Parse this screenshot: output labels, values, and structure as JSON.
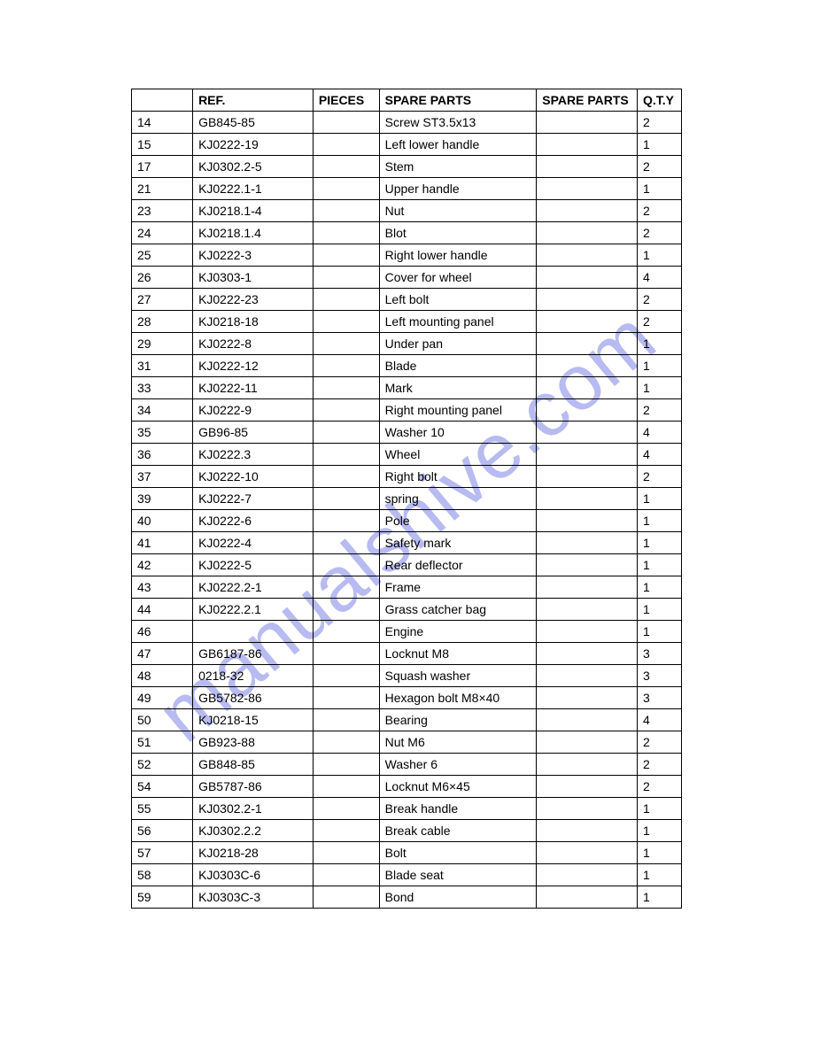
{
  "watermark": {
    "text": "manualshive.com",
    "color": "#8a8ee8"
  },
  "table": {
    "headers": {
      "idx": "",
      "ref": "REF.",
      "pieces": "PIECES",
      "spare1": "SPARE PARTS",
      "spare2": "SPARE PARTS",
      "qty": "Q.T.Y"
    },
    "rows": [
      {
        "idx": "14",
        "ref": "GB845-85",
        "pieces": "",
        "spare1": "Screw ST3.5x13",
        "spare2": "",
        "qty": "2"
      },
      {
        "idx": "15",
        "ref": "KJ0222-19",
        "pieces": "",
        "spare1": "Left lower handle",
        "spare2": "",
        "qty": "1"
      },
      {
        "idx": "17",
        "ref": "KJ0302.2-5",
        "pieces": "",
        "spare1": "Stem",
        "spare2": "",
        "qty": "2"
      },
      {
        "idx": "21",
        "ref": "KJ0222.1-1",
        "pieces": "",
        "spare1": "Upper handle",
        "spare2": "",
        "qty": "1"
      },
      {
        "idx": "23",
        "ref": "KJ0218.1-4",
        "pieces": "",
        "spare1": "Nut",
        "spare2": "",
        "qty": "2"
      },
      {
        "idx": "24",
        "ref": "KJ0218.1.4",
        "pieces": "",
        "spare1": "Blot",
        "spare2": "",
        "qty": "2"
      },
      {
        "idx": "25",
        "ref": "KJ0222-3",
        "pieces": "",
        "spare1": "Right lower handle",
        "spare2": "",
        "qty": "1"
      },
      {
        "idx": "26",
        "ref": "KJ0303-1",
        "pieces": "",
        "spare1": "Cover for wheel",
        "spare2": "",
        "qty": "4"
      },
      {
        "idx": "27",
        "ref": "KJ0222-23",
        "pieces": "",
        "spare1": "Left bolt",
        "spare2": "",
        "qty": "2"
      },
      {
        "idx": "28",
        "ref": "KJ0218-18",
        "pieces": "",
        "spare1": "Left mounting panel",
        "spare2": "",
        "qty": "2"
      },
      {
        "idx": "29",
        "ref": "KJ0222-8",
        "pieces": "",
        "spare1": "Under pan",
        "spare2": "",
        "qty": "1"
      },
      {
        "idx": "31",
        "ref": "KJ0222-12",
        "pieces": "",
        "spare1": "Blade",
        "spare2": "",
        "qty": "1"
      },
      {
        "idx": "33",
        "ref": "KJ0222-11",
        "pieces": "",
        "spare1": "Mark",
        "spare2": "",
        "qty": "1"
      },
      {
        "idx": "34",
        "ref": "KJ0222-9",
        "pieces": "",
        "spare1": "Right mounting panel",
        "spare2": "",
        "qty": "2"
      },
      {
        "idx": "35",
        "ref": "GB96-85",
        "pieces": "",
        "spare1": "Washer 10",
        "spare2": "",
        "qty": "4"
      },
      {
        "idx": "36",
        "ref": "KJ0222.3",
        "pieces": "",
        "spare1": "Wheel",
        "spare2": "",
        "qty": "4"
      },
      {
        "idx": "37",
        "ref": "KJ0222-10",
        "pieces": "",
        "spare1": "Right bolt",
        "spare2": "",
        "qty": "2"
      },
      {
        "idx": "39",
        "ref": "KJ0222-7",
        "pieces": "",
        "spare1": "spring",
        "spare2": "",
        "qty": "1"
      },
      {
        "idx": "40",
        "ref": "KJ0222-6",
        "pieces": "",
        "spare1": "Pole",
        "spare2": "",
        "qty": "1"
      },
      {
        "idx": "41",
        "ref": "KJ0222-4",
        "pieces": "",
        "spare1": "Safety mark",
        "spare2": "",
        "qty": "1"
      },
      {
        "idx": "42",
        "ref": "KJ0222-5",
        "pieces": "",
        "spare1": "Rear deflector",
        "spare2": "",
        "qty": "1"
      },
      {
        "idx": "43",
        "ref": "KJ0222.2-1",
        "pieces": "",
        "spare1": "Frame",
        "spare2": "",
        "qty": "1"
      },
      {
        "idx": "44",
        "ref": "KJ0222.2.1",
        "pieces": "",
        "spare1": "Grass catcher bag",
        "spare2": "",
        "qty": "1"
      },
      {
        "idx": "46",
        "ref": "",
        "pieces": "",
        "spare1": "Engine",
        "spare2": "",
        "qty": "1"
      },
      {
        "idx": "47",
        "ref": "GB6187-86",
        "pieces": "",
        "spare1": "Locknut M8",
        "spare2": "",
        "qty": "3"
      },
      {
        "idx": "48",
        "ref": "0218-32",
        "pieces": "",
        "spare1": "Squash washer",
        "spare2": "",
        "qty": "3"
      },
      {
        "idx": "49",
        "ref": "GB5782-86",
        "pieces": "",
        "spare1": "Hexagon bolt M8×40",
        "spare2": "",
        "qty": "3"
      },
      {
        "idx": "50",
        "ref": "KJ0218-15",
        "pieces": "",
        "spare1": "Bearing",
        "spare2": "",
        "qty": "4"
      },
      {
        "idx": "51",
        "ref": "GB923-88",
        "pieces": "",
        "spare1": "Nut M6",
        "spare2": "",
        "qty": "2"
      },
      {
        "idx": "52",
        "ref": "GB848-85",
        "pieces": "",
        "spare1": "Washer 6",
        "spare2": "",
        "qty": "2"
      },
      {
        "idx": "54",
        "ref": "GB5787-86",
        "pieces": "",
        "spare1": "Locknut M6×45",
        "spare2": "",
        "qty": "2"
      },
      {
        "idx": "55",
        "ref": "KJ0302.2-1",
        "pieces": "",
        "spare1": "Break handle",
        "spare2": "",
        "qty": "1"
      },
      {
        "idx": "56",
        "ref": "KJ0302.2.2",
        "pieces": "",
        "spare1": "Break cable",
        "spare2": "",
        "qty": "1"
      },
      {
        "idx": "57",
        "ref": "KJ0218-28",
        "pieces": "",
        "spare1": "Bolt",
        "spare2": "",
        "qty": "1"
      },
      {
        "idx": "58",
        "ref": "KJ0303C-6",
        "pieces": "",
        "spare1": "Blade seat",
        "spare2": "",
        "qty": "1"
      },
      {
        "idx": "59",
        "ref": "KJ0303C-3",
        "pieces": "",
        "spare1": "Bond",
        "spare2": "",
        "qty": "1"
      }
    ]
  }
}
